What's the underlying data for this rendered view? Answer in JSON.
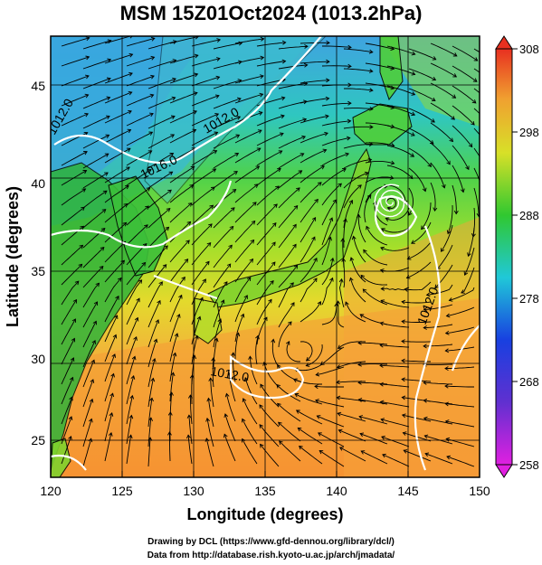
{
  "title": "MSM 15Z01Oct2024 (1013.2hPa)",
  "xlabel": "Longitude (degrees)",
  "ylabel": "Latitude  (degrees)",
  "x_ticks": [
    "120",
    "125",
    "130",
    "135",
    "140",
    "145",
    "150"
  ],
  "y_ticks": [
    "25",
    "30",
    "35",
    "40",
    "45"
  ],
  "colorbar_ticks": [
    "308",
    "298",
    "288",
    "278",
    "268",
    "258"
  ],
  "contour_labels": [
    "1016.0",
    "1012.0",
    "1012.0",
    "1012.0",
    "1012.0"
  ],
  "footer": {
    "line1": "Drawing by DCL (https://www.gfd-dennou.org/library/dcl/)",
    "line2": "Data from http://database.rish.kyoto-u.ac.jp/arch/jmadata/"
  },
  "map": {
    "lon_range": [
      120,
      150
    ],
    "lat_range": [
      22.5,
      47.5
    ],
    "colorbar_range": [
      258,
      308
    ],
    "cyclone_center": {
      "lon": 143.8,
      "lat": 38.1
    },
    "low_center": {
      "lon": 137.2,
      "lat": 29.6
    }
  }
}
